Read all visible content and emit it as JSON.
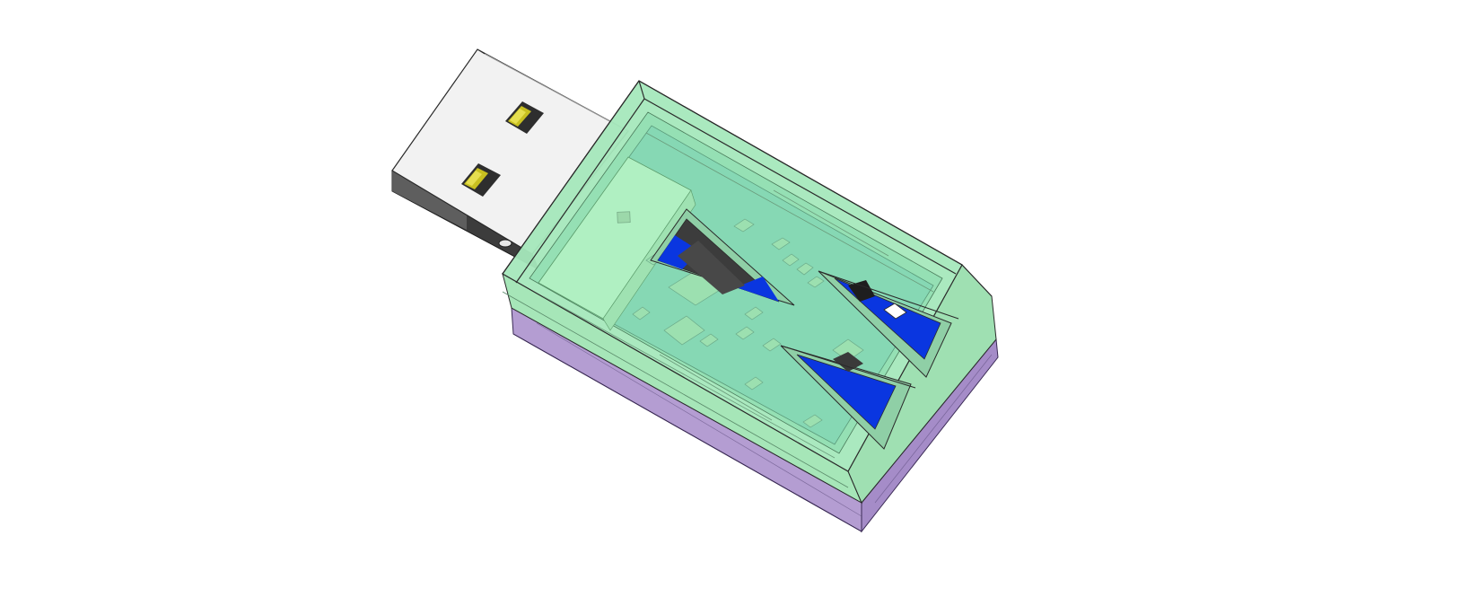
{
  "scene": {
    "kind": "3d-cad-render",
    "subject": "usb-stick-enclosure",
    "background": "#ffffff"
  },
  "colors": {
    "usb_shell_top": "#f2f2f2",
    "usb_shell_side": "#3a3a3a",
    "usb_contact_gold": "#c8c020",
    "usb_contact_dark": "#2e2e2e",
    "case_top_green": "#8fe0a6",
    "case_side_green": "#a6e6b8",
    "case_bottom_purple": "#b49dd2",
    "pcb_green": "#7fd8b0",
    "component_green": "#9ce0b0",
    "cutout_blue": "#0a36e0",
    "cutout_dark": "#3c3c3c",
    "outline": "#2a2a2a"
  },
  "parts": [
    "usb-a-plug",
    "translucent-green-cover",
    "purple-base",
    "pcb",
    "triangular-cutout-1",
    "triangular-cutout-2",
    "triangular-cutout-3"
  ]
}
